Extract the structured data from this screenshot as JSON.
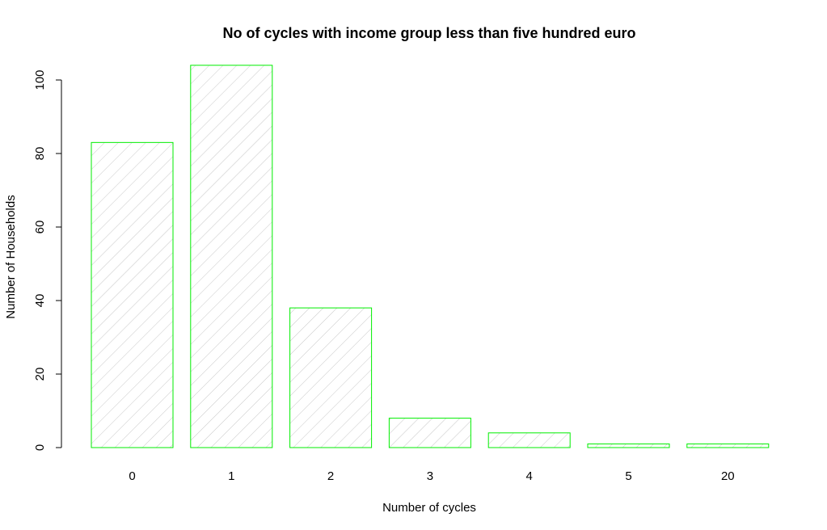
{
  "chart_data": {
    "type": "bar",
    "title": "No of cycles with income group less than five hundred euro",
    "xlabel": "Number of cycles",
    "ylabel": "Number of Households",
    "categories": [
      "0",
      "1",
      "2",
      "3",
      "4",
      "5",
      "20"
    ],
    "values": [
      83,
      104,
      38,
      8,
      4,
      1,
      1
    ],
    "ylim": [
      0,
      104
    ],
    "yticks": [
      0,
      20,
      40,
      60,
      80,
      100
    ],
    "grid": false,
    "legend": "none",
    "bar_border_color": "#00ee00",
    "hatch_color": "#c8c8c8",
    "background": "#ffffff"
  }
}
